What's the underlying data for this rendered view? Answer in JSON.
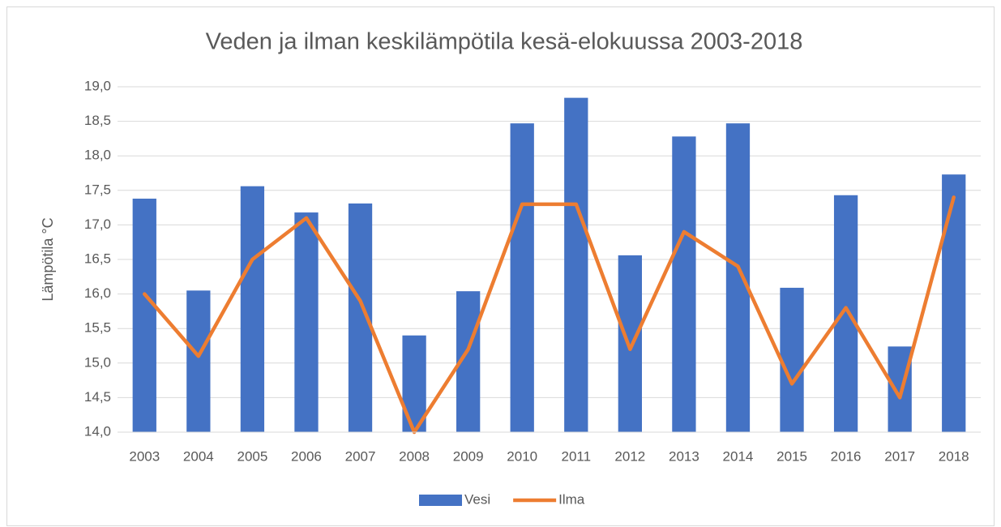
{
  "chart_data": {
    "type": "bar",
    "title": "Veden ja ilman keskilämpötila kesä-elokuussa 2003-2018",
    "y_label": "Lämpötila °C",
    "categories": [
      "2003",
      "2004",
      "2005",
      "2006",
      "2007",
      "2008",
      "2009",
      "2010",
      "2011",
      "2012",
      "2013",
      "2014",
      "2015",
      "2016",
      "2017",
      "2018"
    ],
    "series": [
      {
        "name": "Vesi",
        "type": "bar",
        "color": "#4472c4",
        "values": [
          17.38,
          16.05,
          17.56,
          17.18,
          17.31,
          15.4,
          16.04,
          18.47,
          18.84,
          16.56,
          18.28,
          18.47,
          16.09,
          17.43,
          15.24,
          17.73
        ]
      },
      {
        "name": "Ilma",
        "type": "line",
        "color": "#ed7d31",
        "values": [
          16.0,
          15.1,
          16.5,
          17.1,
          15.9,
          14.0,
          15.2,
          17.3,
          17.3,
          15.2,
          16.9,
          16.4,
          14.7,
          15.8,
          14.5,
          17.4
        ]
      }
    ],
    "ylim": [
      14,
      19
    ],
    "yticks": [
      {
        "value": 14,
        "label": "14,0"
      },
      {
        "value": 14.5,
        "label": "14,5"
      },
      {
        "value": 15,
        "label": "15,0"
      },
      {
        "value": 15.5,
        "label": "15,5"
      },
      {
        "value": 16,
        "label": "16,0"
      },
      {
        "value": 16.5,
        "label": "16,5"
      },
      {
        "value": 17,
        "label": "17,0"
      },
      {
        "value": 17.5,
        "label": "17,5"
      },
      {
        "value": 18,
        "label": "18,0"
      },
      {
        "value": 18.5,
        "label": "18,5"
      },
      {
        "value": 19,
        "label": "19,0"
      }
    ],
    "grid": true,
    "legend": "bottom"
  }
}
